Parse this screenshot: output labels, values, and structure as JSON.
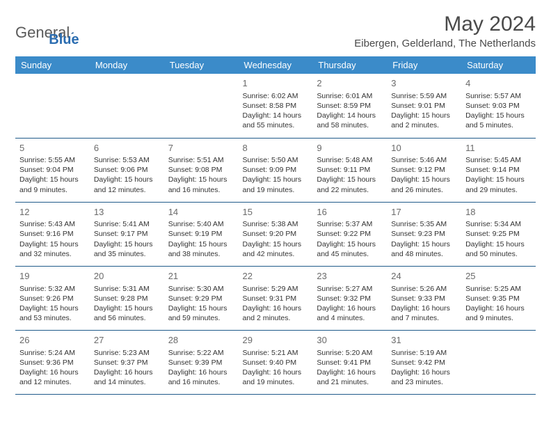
{
  "brand": {
    "part1": "General",
    "part2": "Blue"
  },
  "title": "May 2024",
  "location": "Eibergen, Gelderland, The Netherlands",
  "colors": {
    "header_bg": "#3b8bc9",
    "header_text": "#ffffff",
    "border": "#1f5a8a",
    "body_text": "#333333",
    "daynum": "#6a6a6a",
    "brand_gray": "#5a5a5a",
    "brand_blue": "#2a6cb0"
  },
  "weekdays": [
    "Sunday",
    "Monday",
    "Tuesday",
    "Wednesday",
    "Thursday",
    "Friday",
    "Saturday"
  ],
  "layout": {
    "first_weekday_index": 3,
    "days_in_month": 31
  },
  "days": {
    "1": {
      "sunrise": "Sunrise: 6:02 AM",
      "sunset": "Sunset: 8:58 PM",
      "daylight": "Daylight: 14 hours and 55 minutes."
    },
    "2": {
      "sunrise": "Sunrise: 6:01 AM",
      "sunset": "Sunset: 8:59 PM",
      "daylight": "Daylight: 14 hours and 58 minutes."
    },
    "3": {
      "sunrise": "Sunrise: 5:59 AM",
      "sunset": "Sunset: 9:01 PM",
      "daylight": "Daylight: 15 hours and 2 minutes."
    },
    "4": {
      "sunrise": "Sunrise: 5:57 AM",
      "sunset": "Sunset: 9:03 PM",
      "daylight": "Daylight: 15 hours and 5 minutes."
    },
    "5": {
      "sunrise": "Sunrise: 5:55 AM",
      "sunset": "Sunset: 9:04 PM",
      "daylight": "Daylight: 15 hours and 9 minutes."
    },
    "6": {
      "sunrise": "Sunrise: 5:53 AM",
      "sunset": "Sunset: 9:06 PM",
      "daylight": "Daylight: 15 hours and 12 minutes."
    },
    "7": {
      "sunrise": "Sunrise: 5:51 AM",
      "sunset": "Sunset: 9:08 PM",
      "daylight": "Daylight: 15 hours and 16 minutes."
    },
    "8": {
      "sunrise": "Sunrise: 5:50 AM",
      "sunset": "Sunset: 9:09 PM",
      "daylight": "Daylight: 15 hours and 19 minutes."
    },
    "9": {
      "sunrise": "Sunrise: 5:48 AM",
      "sunset": "Sunset: 9:11 PM",
      "daylight": "Daylight: 15 hours and 22 minutes."
    },
    "10": {
      "sunrise": "Sunrise: 5:46 AM",
      "sunset": "Sunset: 9:12 PM",
      "daylight": "Daylight: 15 hours and 26 minutes."
    },
    "11": {
      "sunrise": "Sunrise: 5:45 AM",
      "sunset": "Sunset: 9:14 PM",
      "daylight": "Daylight: 15 hours and 29 minutes."
    },
    "12": {
      "sunrise": "Sunrise: 5:43 AM",
      "sunset": "Sunset: 9:16 PM",
      "daylight": "Daylight: 15 hours and 32 minutes."
    },
    "13": {
      "sunrise": "Sunrise: 5:41 AM",
      "sunset": "Sunset: 9:17 PM",
      "daylight": "Daylight: 15 hours and 35 minutes."
    },
    "14": {
      "sunrise": "Sunrise: 5:40 AM",
      "sunset": "Sunset: 9:19 PM",
      "daylight": "Daylight: 15 hours and 38 minutes."
    },
    "15": {
      "sunrise": "Sunrise: 5:38 AM",
      "sunset": "Sunset: 9:20 PM",
      "daylight": "Daylight: 15 hours and 42 minutes."
    },
    "16": {
      "sunrise": "Sunrise: 5:37 AM",
      "sunset": "Sunset: 9:22 PM",
      "daylight": "Daylight: 15 hours and 45 minutes."
    },
    "17": {
      "sunrise": "Sunrise: 5:35 AM",
      "sunset": "Sunset: 9:23 PM",
      "daylight": "Daylight: 15 hours and 48 minutes."
    },
    "18": {
      "sunrise": "Sunrise: 5:34 AM",
      "sunset": "Sunset: 9:25 PM",
      "daylight": "Daylight: 15 hours and 50 minutes."
    },
    "19": {
      "sunrise": "Sunrise: 5:32 AM",
      "sunset": "Sunset: 9:26 PM",
      "daylight": "Daylight: 15 hours and 53 minutes."
    },
    "20": {
      "sunrise": "Sunrise: 5:31 AM",
      "sunset": "Sunset: 9:28 PM",
      "daylight": "Daylight: 15 hours and 56 minutes."
    },
    "21": {
      "sunrise": "Sunrise: 5:30 AM",
      "sunset": "Sunset: 9:29 PM",
      "daylight": "Daylight: 15 hours and 59 minutes."
    },
    "22": {
      "sunrise": "Sunrise: 5:29 AM",
      "sunset": "Sunset: 9:31 PM",
      "daylight": "Daylight: 16 hours and 2 minutes."
    },
    "23": {
      "sunrise": "Sunrise: 5:27 AM",
      "sunset": "Sunset: 9:32 PM",
      "daylight": "Daylight: 16 hours and 4 minutes."
    },
    "24": {
      "sunrise": "Sunrise: 5:26 AM",
      "sunset": "Sunset: 9:33 PM",
      "daylight": "Daylight: 16 hours and 7 minutes."
    },
    "25": {
      "sunrise": "Sunrise: 5:25 AM",
      "sunset": "Sunset: 9:35 PM",
      "daylight": "Daylight: 16 hours and 9 minutes."
    },
    "26": {
      "sunrise": "Sunrise: 5:24 AM",
      "sunset": "Sunset: 9:36 PM",
      "daylight": "Daylight: 16 hours and 12 minutes."
    },
    "27": {
      "sunrise": "Sunrise: 5:23 AM",
      "sunset": "Sunset: 9:37 PM",
      "daylight": "Daylight: 16 hours and 14 minutes."
    },
    "28": {
      "sunrise": "Sunrise: 5:22 AM",
      "sunset": "Sunset: 9:39 PM",
      "daylight": "Daylight: 16 hours and 16 minutes."
    },
    "29": {
      "sunrise": "Sunrise: 5:21 AM",
      "sunset": "Sunset: 9:40 PM",
      "daylight": "Daylight: 16 hours and 19 minutes."
    },
    "30": {
      "sunrise": "Sunrise: 5:20 AM",
      "sunset": "Sunset: 9:41 PM",
      "daylight": "Daylight: 16 hours and 21 minutes."
    },
    "31": {
      "sunrise": "Sunrise: 5:19 AM",
      "sunset": "Sunset: 9:42 PM",
      "daylight": "Daylight: 16 hours and 23 minutes."
    }
  }
}
